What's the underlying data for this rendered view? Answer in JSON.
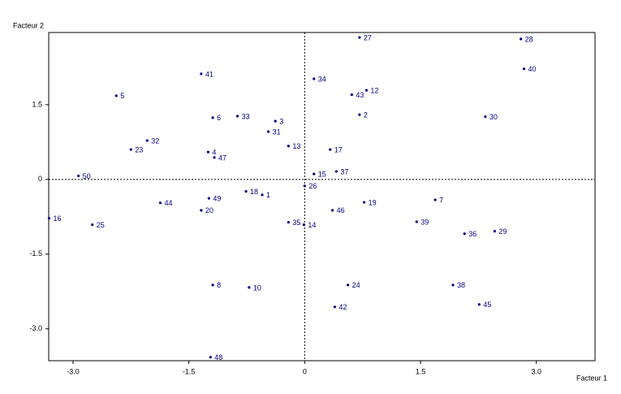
{
  "chart_data": {
    "type": "scatter",
    "xlabel": "Facteur 1",
    "ylabel": "Facteur 2",
    "color": "#000080",
    "xlim": [
      -3.315,
      3.76
    ],
    "ylim": [
      -3.64,
      2.95
    ],
    "xticks": [
      {
        "value": -3,
        "label": "-3.0"
      },
      {
        "value": -1.5,
        "label": "-1.5"
      },
      0,
      {
        "value": 1.5,
        "label": "1.5"
      },
      {
        "value": 3,
        "label": "3.0"
      }
    ],
    "yticks": [
      {
        "value": 1.5,
        "label": "1.5"
      },
      0,
      {
        "value": -1.5,
        "label": "-1.5"
      },
      {
        "value": -3,
        "label": "-3.0"
      }
    ],
    "zero_lines": true,
    "labels": [
      "27",
      "28",
      "41",
      "34",
      "12",
      "43",
      "5",
      "40",
      "2",
      "30",
      "33",
      "6",
      "3",
      "31",
      "32",
      "13",
      "17",
      "23",
      "4",
      "47",
      "50",
      "15",
      "37",
      "26",
      "18",
      "1",
      "49",
      "7",
      "19",
      "44",
      "20",
      "46",
      "16",
      "39",
      "35",
      "14",
      "25",
      "29",
      "36",
      "8",
      "10",
      "24",
      "38",
      "45",
      "42",
      "48"
    ],
    "x": [
      0.71,
      2.8,
      -1.34,
      0.12,
      0.8,
      0.61,
      -2.44,
      2.84,
      0.71,
      2.34,
      -0.87,
      -1.19,
      -0.38,
      -0.47,
      -2.04,
      -0.21,
      0.33,
      -2.25,
      -1.25,
      -1.17,
      -2.93,
      0.12,
      0.41,
      0.0,
      -0.76,
      -0.55,
      -1.24,
      1.69,
      0.77,
      -1.87,
      -1.34,
      0.36,
      -3.31,
      1.45,
      -0.21,
      -0.01,
      -2.75,
      2.46,
      2.07,
      -1.19,
      -0.72,
      0.56,
      1.92,
      2.26,
      0.39,
      -1.22
    ],
    "values": [
      2.85,
      2.82,
      2.12,
      2.02,
      1.79,
      1.7,
      1.68,
      2.22,
      1.3,
      1.26,
      1.27,
      1.24,
      1.17,
      0.96,
      0.78,
      0.67,
      0.6,
      0.6,
      0.55,
      0.44,
      0.07,
      0.11,
      0.16,
      -0.13,
      -0.24,
      -0.31,
      -0.38,
      -0.41,
      -0.46,
      -0.47,
      -0.62,
      -0.62,
      -0.78,
      -0.85,
      -0.86,
      -0.91,
      -0.91,
      -1.04,
      -1.09,
      -2.12,
      -2.17,
      -2.12,
      -2.12,
      -2.51,
      -2.56,
      -3.57
    ]
  }
}
